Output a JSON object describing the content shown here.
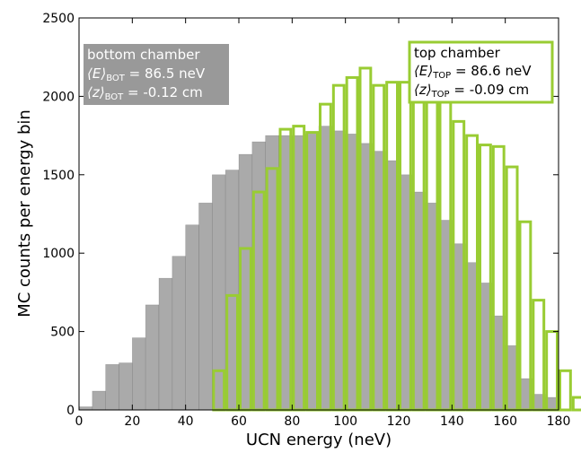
{
  "chart_data": {
    "type": "bar",
    "xlabel": "UCN energy (neV)",
    "ylabel": "MC counts per energy bin",
    "xlim": [
      0,
      180
    ],
    "ylim": [
      0,
      2500
    ],
    "xticks": [
      0,
      20,
      40,
      60,
      80,
      100,
      120,
      140,
      160,
      180
    ],
    "yticks": [
      0,
      500,
      1000,
      1500,
      2000,
      2500
    ],
    "bin_width": 5,
    "bin_start": 0,
    "series": [
      {
        "name": "bottom chamber",
        "style": "filled",
        "color": "#aaaaaa",
        "values": [
          20,
          120,
          290,
          300,
          460,
          670,
          840,
          980,
          1180,
          1320,
          1500,
          1530,
          1630,
          1710,
          1750,
          1750,
          1750,
          1760,
          1810,
          1780,
          1760,
          1700,
          1650,
          1590,
          1500,
          1390,
          1320,
          1210,
          1060,
          940,
          810,
          600,
          410,
          200,
          100,
          80
        ]
      },
      {
        "name": "top chamber",
        "style": "outline",
        "color": "#99cc33",
        "values": [
          0,
          0,
          0,
          0,
          0,
          0,
          0,
          0,
          0,
          0,
          250,
          730,
          1030,
          1390,
          1540,
          1790,
          1810,
          1770,
          1950,
          2070,
          2120,
          2180,
          2070,
          2090,
          2090,
          2060,
          2070,
          1990,
          1840,
          1750,
          1690,
          1680,
          1550,
          1200,
          700,
          500,
          250,
          80,
          40,
          0
        ]
      }
    ],
    "annotations": {
      "bottom": {
        "line1": "bottom chamber",
        "E_sym": "⟨E⟩",
        "E_sub": "BOT",
        "E_val": " = 86.5 neV",
        "z_sym": "⟨z⟩",
        "z_sub": "BOT",
        "z_val": " = -0.12 cm",
        "bg_color": "#999999",
        "text_color": "#ffffff"
      },
      "top": {
        "line1": "top chamber",
        "E_sym": "⟨E⟩",
        "E_sub": "TOP",
        "E_val": " = 86.6 neV",
        "z_sym": "⟨z⟩",
        "z_sub": "TOP",
        "z_val": " = -0.09 cm",
        "border_color": "#99cc33",
        "text_color": "#000000"
      }
    }
  }
}
